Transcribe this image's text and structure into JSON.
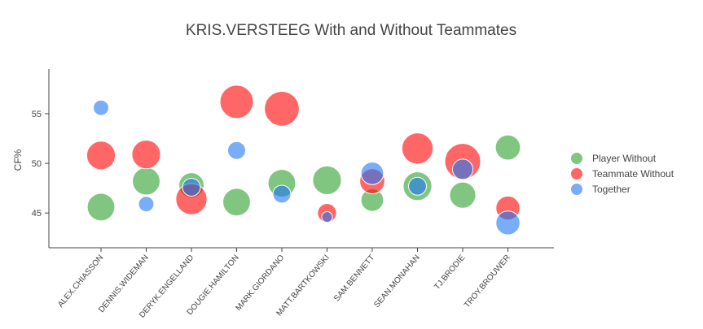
{
  "chart_data": {
    "type": "scatter",
    "title": "KRIS.VERSTEEG With and Without Teammates",
    "xlabel": "",
    "ylabel": "CF%",
    "categories": [
      "ALEX.CHIASSON",
      "DENNIS.WIDEMAN",
      "DERYK.ENGELLAND",
      "DOUGIE.HAMILTON",
      "MARK.GIORDANO",
      "MATT.BARTKOWSKI",
      "SAM.BENNETT",
      "SEAN.MONAHAN",
      "TJ.BRODIE",
      "TROY.BROUWER"
    ],
    "ylim": [
      41.5,
      59.5
    ],
    "yticks": [
      45,
      50,
      55
    ],
    "ytick_labels": [
      "45",
      "50",
      "55"
    ],
    "bubble_size_encoded": true,
    "legend_position": "right",
    "grid": false,
    "series": [
      {
        "name": "Player Without",
        "color": "#2ca02c",
        "points": [
          {
            "x": "ALEX.CHIASSON",
            "y": 45.6,
            "size": 0.77
          },
          {
            "x": "DENNIS.WIDEMAN",
            "y": 48.2,
            "size": 0.77
          },
          {
            "x": "DERYK.ENGELLAND",
            "y": 47.8,
            "size": 0.7
          },
          {
            "x": "DOUGIE.HAMILTON",
            "y": 46.1,
            "size": 0.77
          },
          {
            "x": "MARK.GIORDANO",
            "y": 48.0,
            "size": 0.77
          },
          {
            "x": "MATT.BARTKOWSKI",
            "y": 48.3,
            "size": 0.8
          },
          {
            "x": "SAM.BENNETT",
            "y": 46.3,
            "size": 0.63
          },
          {
            "x": "SEAN.MONAHAN",
            "y": 47.7,
            "size": 0.8
          },
          {
            "x": "TJ.BRODIE",
            "y": 46.8,
            "size": 0.73
          },
          {
            "x": "TROY.BROUWER",
            "y": 51.6,
            "size": 0.7
          }
        ]
      },
      {
        "name": "Teammate Without",
        "color": "#ff0000",
        "points": [
          {
            "x": "ALEX.CHIASSON",
            "y": 50.8,
            "size": 0.8
          },
          {
            "x": "DENNIS.WIDEMAN",
            "y": 50.9,
            "size": 0.8
          },
          {
            "x": "DERYK.ENGELLAND",
            "y": 46.4,
            "size": 0.87
          },
          {
            "x": "DOUGIE.HAMILTON",
            "y": 56.2,
            "size": 0.93
          },
          {
            "x": "MARK.GIORDANO",
            "y": 55.5,
            "size": 0.97
          },
          {
            "x": "MATT.BARTKOWSKI",
            "y": 45.0,
            "size": 0.53
          },
          {
            "x": "SAM.BENNETT",
            "y": 48.2,
            "size": 0.7
          },
          {
            "x": "SEAN.MONAHAN",
            "y": 51.5,
            "size": 0.87
          },
          {
            "x": "TJ.BRODIE",
            "y": 50.2,
            "size": 1.0
          },
          {
            "x": "TROY.BROUWER",
            "y": 45.5,
            "size": 0.67
          }
        ]
      },
      {
        "name": "Together",
        "color": "#1f77f4",
        "points": [
          {
            "x": "ALEX.CHIASSON",
            "y": 55.6,
            "size": 0.43
          },
          {
            "x": "DENNIS.WIDEMAN",
            "y": 45.9,
            "size": 0.43
          },
          {
            "x": "DERYK.ENGELLAND",
            "y": 47.6,
            "size": 0.5
          },
          {
            "x": "DOUGIE.HAMILTON",
            "y": 51.3,
            "size": 0.5
          },
          {
            "x": "MARK.GIORDANO",
            "y": 46.9,
            "size": 0.5
          },
          {
            "x": "MATT.BARTKOWSKI",
            "y": 44.6,
            "size": 0.3
          },
          {
            "x": "SAM.BENNETT",
            "y": 49.0,
            "size": 0.63
          },
          {
            "x": "SEAN.MONAHAN",
            "y": 47.7,
            "size": 0.5
          },
          {
            "x": "TJ.BRODIE",
            "y": 49.4,
            "size": 0.57
          },
          {
            "x": "TROY.BROUWER",
            "y": 44.0,
            "size": 0.67
          }
        ]
      }
    ]
  }
}
